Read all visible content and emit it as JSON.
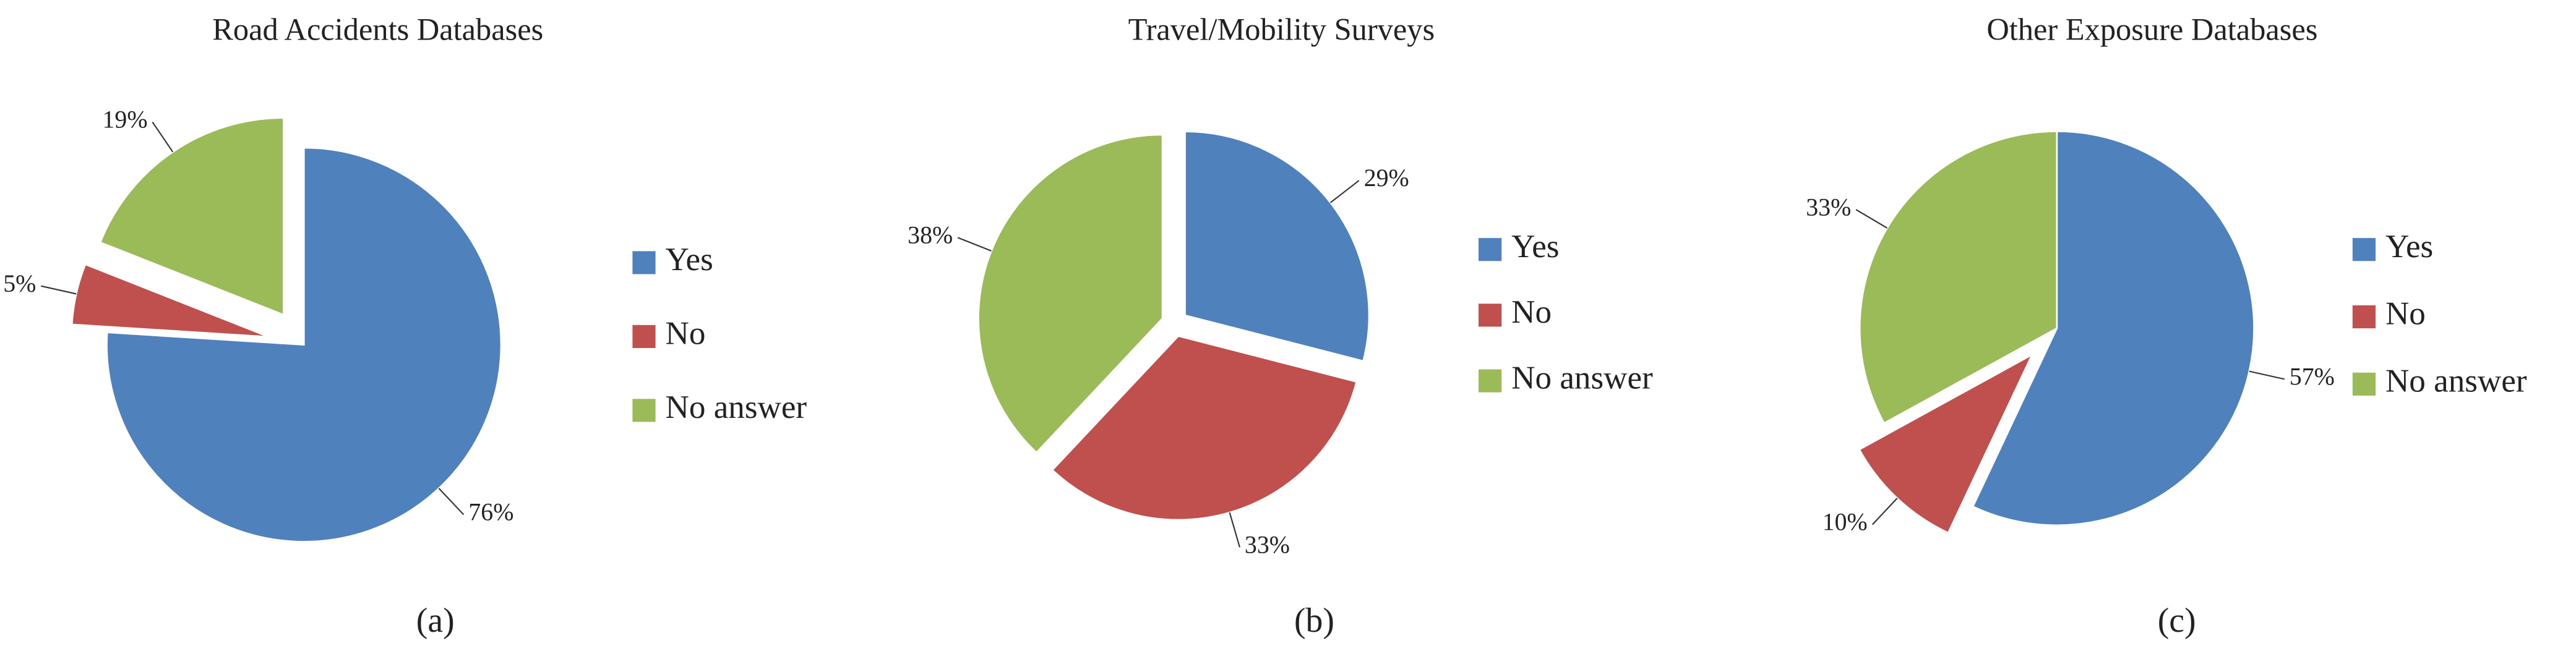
{
  "chart_data": [
    {
      "type": "pie",
      "title": "Road Accidents Databases",
      "caption": "(a)",
      "categories": [
        "Yes",
        "No",
        "No answer"
      ],
      "values": [
        76,
        5,
        19
      ],
      "value_labels": [
        "76%",
        "5%",
        "19%"
      ],
      "colors": [
        "#4f81bd",
        "#c0504d",
        "#9bbb59"
      ],
      "exploded": [
        false,
        true,
        true
      ]
    },
    {
      "type": "pie",
      "title": "Travel/Mobility Surveys",
      "caption": "(b)",
      "categories": [
        "Yes",
        "No",
        "No answer"
      ],
      "values": [
        29,
        33,
        38
      ],
      "value_labels": [
        "29%",
        "33%",
        "38%"
      ],
      "colors": [
        "#4f81bd",
        "#c0504d",
        "#9bbb59"
      ],
      "exploded": [
        true,
        true,
        true
      ]
    },
    {
      "type": "pie",
      "title": "Other Exposure Databases",
      "caption": "(c)",
      "categories": [
        "Yes",
        "No",
        "No answer"
      ],
      "values": [
        57,
        10,
        33
      ],
      "value_labels": [
        "57%",
        "10%",
        "33%"
      ],
      "colors": [
        "#4f81bd",
        "#c0504d",
        "#9bbb59"
      ],
      "exploded": [
        false,
        true,
        false
      ]
    }
  ]
}
